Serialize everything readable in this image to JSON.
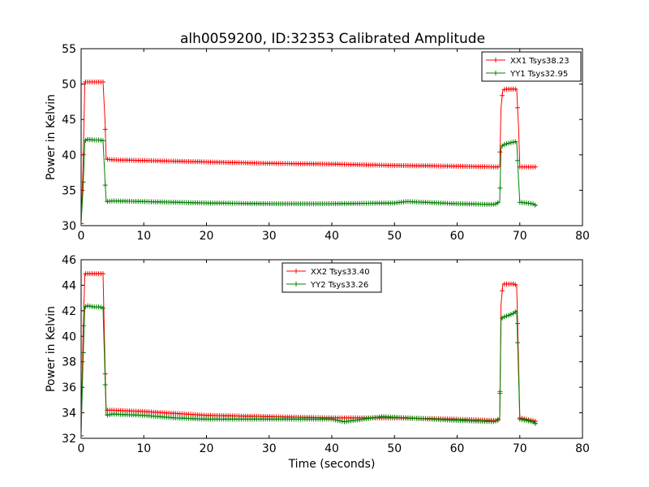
{
  "colors": {
    "xx": "#ff0000",
    "yy": "#008000"
  },
  "chart_data": [
    {
      "type": "line",
      "title": "alh0059200, ID:32353 Calibrated Amplitude",
      "xlabel": "",
      "ylabel": "Power in Kelvin",
      "xlim": [
        0,
        80
      ],
      "ylim": [
        30,
        55
      ],
      "xticks": [
        "0",
        "10",
        "20",
        "30",
        "40",
        "50",
        "60",
        "70",
        "80"
      ],
      "yticks": [
        "30",
        "35",
        "40",
        "45",
        "50",
        "55"
      ],
      "legend_position": "top-right",
      "series": [
        {
          "name": "XX1 Tsys38.23",
          "color": "#ff0000",
          "x": [
            0.0,
            0.3,
            0.6,
            1,
            2,
            3,
            3.5,
            3.8,
            4.0,
            5,
            10,
            20,
            30,
            40,
            50,
            60,
            66,
            66.8,
            67.0,
            67.3,
            68,
            69,
            69.5,
            69.8,
            70.0,
            71,
            72,
            72.7
          ],
          "y": [
            30.3,
            38.0,
            50.3,
            50.3,
            50.3,
            50.3,
            50.3,
            45.0,
            39.4,
            39.3,
            39.2,
            39.0,
            38.8,
            38.7,
            38.5,
            38.4,
            38.3,
            38.3,
            46.7,
            49.2,
            49.3,
            49.3,
            49.3,
            44.0,
            38.3,
            38.3,
            38.3,
            38.3
          ]
        },
        {
          "name": "YY1 Tsys32.95",
          "color": "#008000",
          "x": [
            0.0,
            0.3,
            0.6,
            1,
            2,
            3,
            3.5,
            3.8,
            4.0,
            5,
            10,
            20,
            30,
            40,
            50,
            52,
            60,
            66,
            66.8,
            67.0,
            67.3,
            68,
            69,
            69.5,
            69.8,
            70.0,
            71,
            72,
            72.7
          ],
          "y": [
            30.3,
            35.0,
            42.0,
            42.2,
            42.1,
            42.1,
            42.0,
            36.5,
            33.4,
            33.5,
            33.4,
            33.2,
            33.1,
            33.1,
            33.2,
            33.4,
            33.1,
            33.0,
            33.4,
            41.0,
            41.4,
            41.6,
            41.8,
            41.9,
            36.5,
            33.3,
            33.2,
            33.1,
            32.8
          ]
        }
      ]
    },
    {
      "type": "line",
      "title": "",
      "xlabel": "Time (seconds)",
      "ylabel": "Power in Kelvin",
      "xlim": [
        0,
        80
      ],
      "ylim": [
        32,
        46
      ],
      "xticks": [
        "0",
        "10",
        "20",
        "30",
        "40",
        "50",
        "60",
        "70",
        "80"
      ],
      "yticks": [
        "32",
        "34",
        "36",
        "38",
        "40",
        "42",
        "44",
        "46"
      ],
      "legend_position": "top-center",
      "series": [
        {
          "name": "XX2 Tsys33.40",
          "color": "#ff0000",
          "x": [
            0.0,
            0.3,
            0.6,
            1,
            2,
            3,
            3.5,
            3.8,
            4.0,
            5,
            10,
            20,
            30,
            40,
            50,
            60,
            66,
            66.8,
            67.0,
            67.3,
            68,
            69,
            69.5,
            69.8,
            70.0,
            71,
            72,
            72.7
          ],
          "y": [
            32.2,
            40.0,
            44.9,
            44.9,
            44.9,
            44.9,
            44.9,
            38.0,
            34.2,
            34.2,
            34.1,
            33.8,
            33.7,
            33.6,
            33.6,
            33.5,
            33.4,
            33.4,
            42.5,
            44.1,
            44.1,
            44.1,
            44.0,
            38.0,
            33.6,
            33.5,
            33.4,
            33.3
          ]
        },
        {
          "name": "YY2 Tsys33.26",
          "color": "#008000",
          "x": [
            0.0,
            0.3,
            0.6,
            1,
            2,
            3,
            3.5,
            3.8,
            4.0,
            5,
            10,
            15,
            20,
            30,
            40,
            42,
            48,
            52,
            60,
            66,
            66.8,
            67.0,
            67.3,
            68,
            69,
            69.5,
            69.8,
            70.0,
            71,
            72,
            72.7
          ],
          "y": [
            32.2,
            38.0,
            42.3,
            42.4,
            42.3,
            42.3,
            42.2,
            37.0,
            33.8,
            33.9,
            33.8,
            33.6,
            33.5,
            33.5,
            33.5,
            33.3,
            33.7,
            33.6,
            33.4,
            33.3,
            33.6,
            41.3,
            41.5,
            41.6,
            41.8,
            42.0,
            37.0,
            33.5,
            33.4,
            33.3,
            33.1
          ]
        }
      ]
    }
  ]
}
